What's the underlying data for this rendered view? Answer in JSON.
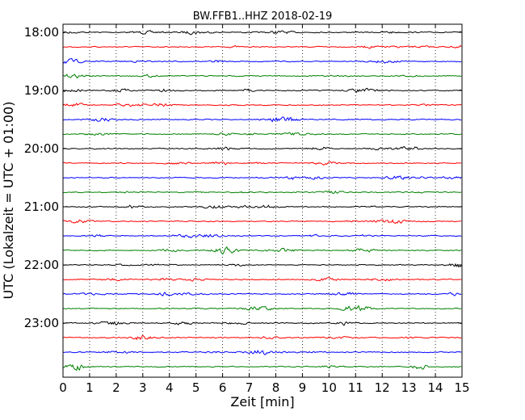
{
  "chart_data": {
    "type": "line",
    "title": "BW.FFB1..HHZ 2018-02-19",
    "xlabel": "Zeit  [min]",
    "ylabel": "UTC (Lokalzeit = UTC + 01:00)",
    "xlim": [
      0,
      15
    ],
    "x_ticks": [
      "0",
      "1",
      "2",
      "3",
      "4",
      "5",
      "6",
      "7",
      "8",
      "9",
      "10",
      "11",
      "12",
      "13",
      "14",
      "15"
    ],
    "grid": "x-dotted",
    "trace_interval_min": 15,
    "start_time": "18:00",
    "trace_count": 24,
    "y_tick_labels": [
      "18:00",
      "19:00",
      "20:00",
      "21:00",
      "22:00",
      "23:00"
    ],
    "y_tick_trace_index": [
      0,
      4,
      8,
      12,
      16,
      20
    ],
    "colors": [
      "#000000",
      "#ff0000",
      "#0000ff",
      "#008000"
    ]
  }
}
